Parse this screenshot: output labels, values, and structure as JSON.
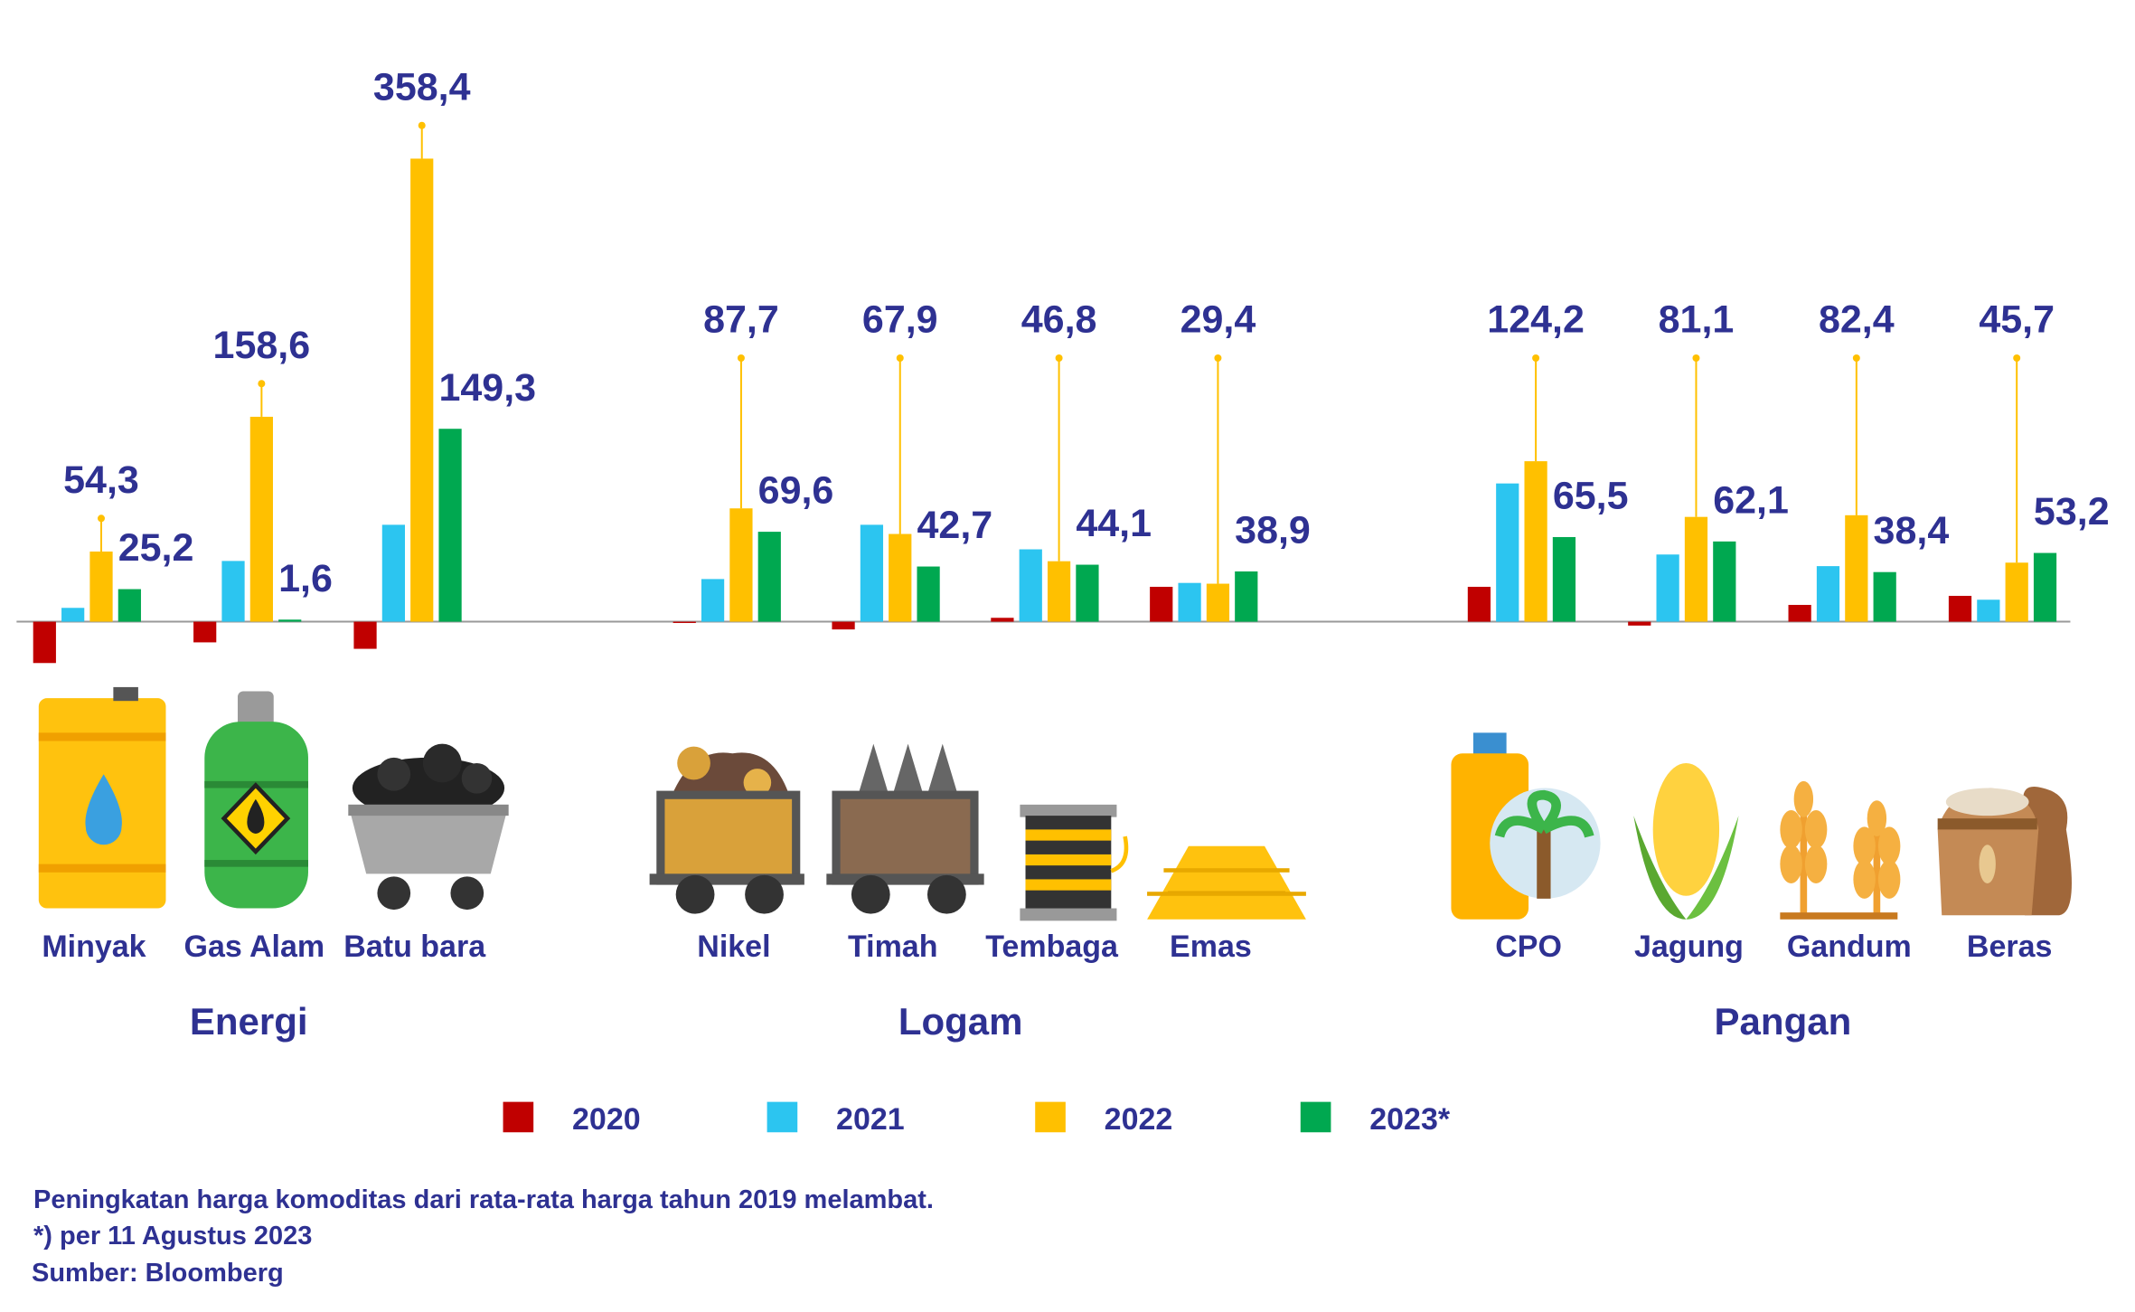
{
  "chart_data": {
    "type": "bar",
    "categories": [
      "Minyak",
      "Gas Alam",
      "Batu bara",
      "Nikel",
      "Timah",
      "Tembaga",
      "Emas",
      "CPO",
      "Jagung",
      "Gandum",
      "Beras"
    ],
    "groups": [
      "Energi",
      "Logam",
      "Pangan"
    ],
    "series": [
      {
        "name": "2020",
        "color": "#c00000",
        "values": [
          -32,
          -16,
          -21,
          -1,
          -6,
          3,
          27,
          27,
          -3,
          13,
          20
        ]
      },
      {
        "name": "2021",
        "color": "#2cc5f0",
        "values": [
          10.7,
          47,
          75,
          33,
          75,
          56,
          30,
          107,
          52,
          43,
          17
        ]
      },
      {
        "name": "2022",
        "color": "#ffc000",
        "values": [
          54.3,
          158.6,
          358.4,
          87.7,
          67.9,
          46.8,
          29.4,
          124.2,
          81.1,
          82.4,
          45.7
        ],
        "value_labels": [
          "54,3",
          "158,6",
          "358,4",
          "87,7",
          "67,9",
          "46,8",
          "29,4",
          "124,2",
          "81,1",
          "82,4",
          "45,7"
        ]
      },
      {
        "name": "2023*",
        "color": "#00a850",
        "values": [
          25.2,
          1.6,
          149.3,
          69.6,
          42.7,
          44.1,
          38.9,
          65.5,
          62.1,
          38.4,
          53.2
        ],
        "value_labels": [
          "25,2",
          "1,6",
          "149,3",
          "69,6",
          "42,7",
          "44,1",
          "38,9",
          "65,5",
          "62,1",
          "38,4",
          "53,2"
        ]
      }
    ],
    "ylim": [
      -50,
      400
    ],
    "notes": [
      "Peningkatan harga komoditas dari rata-rata harga tahun 2019 melambat.",
      "*) per 11 Agustus 2023"
    ],
    "source": "Sumber: Bloomberg"
  }
}
